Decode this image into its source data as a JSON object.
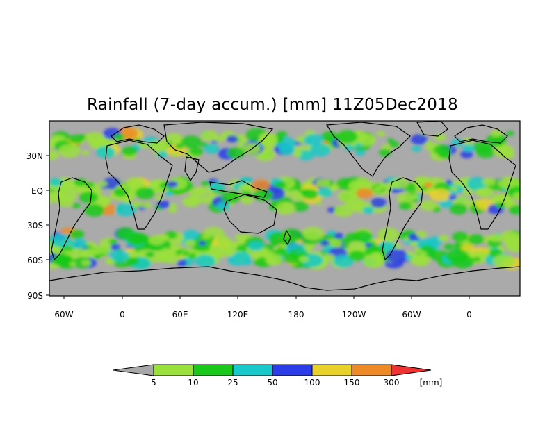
{
  "title": "Rainfall (7-day accum.) [mm] 11Z05Dec2018",
  "map": {
    "background_color": "#aaaaaa",
    "coastline_color": "#000000",
    "lat_labels": [
      "30N",
      "EQ",
      "30S",
      "60S",
      "90S"
    ],
    "lon_labels": [
      "60W",
      "0",
      "60E",
      "120E",
      "180",
      "120W",
      "60W",
      "0"
    ]
  },
  "colorbar": {
    "unit": "[mm]",
    "boundaries": [
      "5",
      "10",
      "25",
      "50",
      "100",
      "150",
      "300"
    ],
    "colors": [
      "#a8a8a8",
      "#9be13c",
      "#19c919",
      "#19c8c8",
      "#2b3de8",
      "#e8d22a",
      "#ee8a26",
      "#ef3232"
    ]
  }
}
